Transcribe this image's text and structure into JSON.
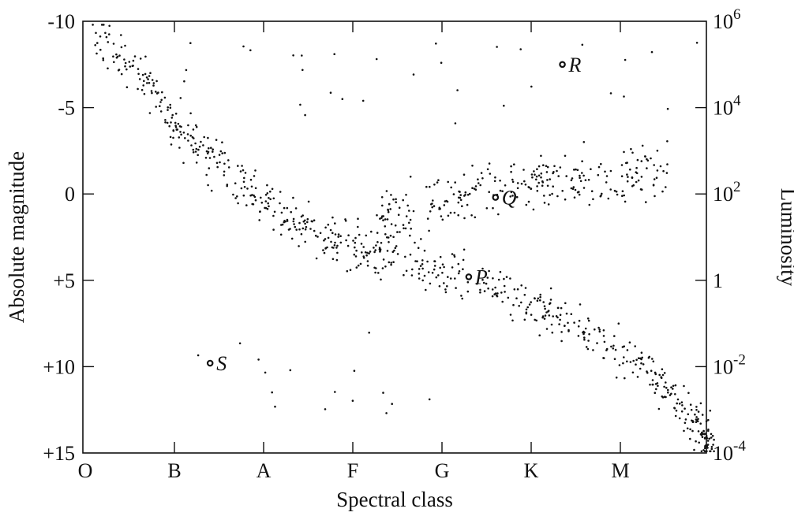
{
  "chart_data": {
    "type": "scatter",
    "xlabel": "Spectral class",
    "ylabel": "Absolute magnitude",
    "y2label": "Luminosity",
    "categories": [
      "O",
      "B",
      "A",
      "F",
      "G",
      "K",
      "M"
    ],
    "xlim": [
      0,
      7.1
    ],
    "ylim": [
      15,
      -10
    ],
    "y_ticks": [
      {
        "value": -10,
        "label": "-10"
      },
      {
        "value": -5,
        "label": "-5"
      },
      {
        "value": 0,
        "label": "0"
      },
      {
        "value": 5,
        "label": "+5"
      },
      {
        "value": 10,
        "label": "+10"
      },
      {
        "value": 15,
        "label": "+15"
      }
    ],
    "y2_ticks": [
      {
        "value": -10,
        "base": "10",
        "exp": "6"
      },
      {
        "value": -5,
        "base": "10",
        "exp": "4"
      },
      {
        "value": 0,
        "base": "10",
        "exp": "2"
      },
      {
        "value": 5,
        "base": "1",
        "exp": ""
      },
      {
        "value": 10,
        "base": "10",
        "exp": "-2"
      },
      {
        "value": 15,
        "base": "10",
        "exp": "-4"
      }
    ],
    "marked_stars": [
      {
        "label": "R",
        "x": 5.35,
        "y": -7.5
      },
      {
        "label": "Q",
        "x": 4.6,
        "y": 0.2
      },
      {
        "label": "P",
        "x": 4.3,
        "y": 4.8
      },
      {
        "label": "S",
        "x": 1.4,
        "y": 9.8
      }
    ],
    "populations": [
      {
        "group": "main sequence",
        "path": [
          [
            0.1,
            -9.5
          ],
          [
            0.7,
            -6.5
          ],
          [
            1.1,
            -3.5
          ],
          [
            1.6,
            -1.2
          ],
          [
            2.2,
            1.2
          ],
          [
            2.8,
            2.8
          ],
          [
            3.4,
            3.7
          ],
          [
            4.0,
            4.4
          ],
          [
            4.6,
            5.5
          ],
          [
            5.2,
            6.8
          ],
          [
            5.8,
            8.6
          ],
          [
            6.3,
            10.3
          ],
          [
            6.8,
            13.0
          ],
          [
            7.05,
            14.8
          ]
        ],
        "count": 700,
        "spread": 0.9
      },
      {
        "group": "giants",
        "path": [
          [
            3.3,
            1.7
          ],
          [
            3.8,
            0.9
          ],
          [
            4.3,
            0.0
          ],
          [
            4.8,
            -0.6
          ],
          [
            5.3,
            -0.9
          ],
          [
            5.9,
            -1.2
          ],
          [
            6.5,
            -1.6
          ]
        ],
        "count": 280,
        "spread": 1.1
      },
      {
        "group": "supergiants",
        "scatter_x": [
          0.8,
          6.9
        ],
        "scatter_y": [
          -9.0,
          -4.0
        ],
        "count": 35
      },
      {
        "group": "white dwarfs",
        "scatter_x": [
          1.1,
          3.9
        ],
        "scatter_y": [
          7.5,
          12.8
        ],
        "count": 16
      }
    ]
  }
}
